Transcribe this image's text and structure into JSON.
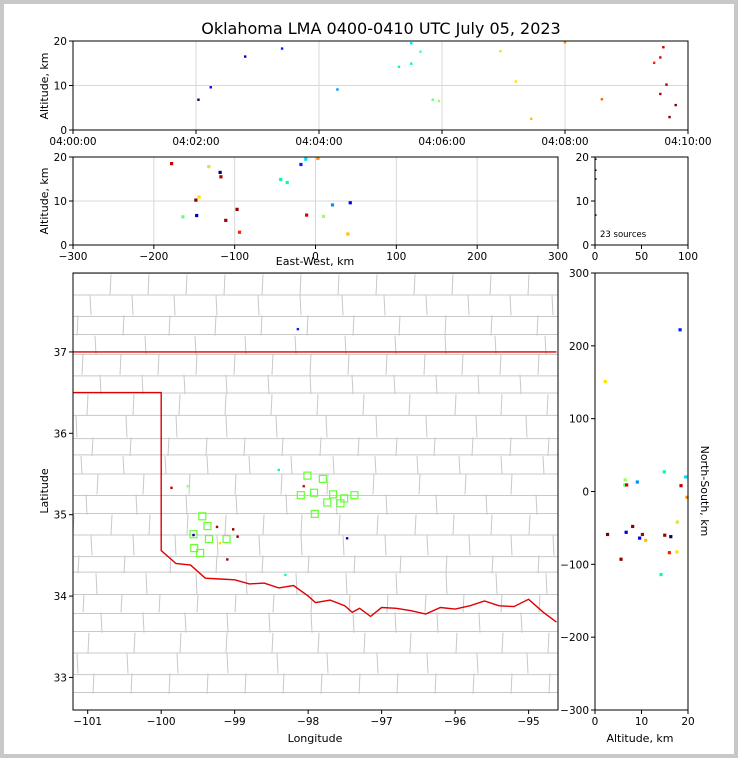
{
  "title": "Oklahoma LMA 0400-0410 UTC July 05, 2023",
  "colors": {
    "state_line": "#e00000",
    "county_line": "#c8c8c8",
    "grid": "#d8d8d8",
    "box": "#66ff33",
    "frame": "#c8c8c8"
  },
  "chart_data": [
    {
      "id": "time_altitude",
      "type": "scatter",
      "ylabel": "Altitude, km",
      "xlabel": "",
      "ylim": [
        0,
        20
      ],
      "y_ticks": [
        "0",
        "10",
        "20"
      ],
      "x_ticks": [
        "04:00:00",
        "04:02:00",
        "04:04:00",
        "04:06:00",
        "04:08:00",
        "04:10:00"
      ],
      "x_tick_minutes": [
        0,
        2,
        4,
        6,
        8,
        10
      ],
      "xlim_minutes": [
        0,
        10
      ],
      "grid": true,
      "points": [
        {
          "x": 2.04,
          "y": 6.8,
          "c": "#000080"
        },
        {
          "x": 2.24,
          "y": 9.6,
          "c": "#0000ff"
        },
        {
          "x": 2.8,
          "y": 16.5,
          "c": "#0000c0"
        },
        {
          "x": 3.4,
          "y": 18.3,
          "c": "#0020ff"
        },
        {
          "x": 4.3,
          "y": 9.1,
          "c": "#0090ff"
        },
        {
          "x": 5.3,
          "y": 14.2,
          "c": "#00ffc0"
        },
        {
          "x": 5.5,
          "y": 14.9,
          "c": "#00ffa0"
        },
        {
          "x": 5.5,
          "y": 19.5,
          "c": "#00e0ff"
        },
        {
          "x": 5.65,
          "y": 17.6,
          "c": "#40ffb0"
        },
        {
          "x": 5.85,
          "y": 6.8,
          "c": "#60ff80"
        },
        {
          "x": 5.95,
          "y": 6.5,
          "c": "#a0ff60"
        },
        {
          "x": 6.95,
          "y": 17.7,
          "c": "#e0e040"
        },
        {
          "x": 7.2,
          "y": 10.9,
          "c": "#ffe000"
        },
        {
          "x": 7.45,
          "y": 2.5,
          "c": "#ffc000"
        },
        {
          "x": 8.0,
          "y": 19.7,
          "c": "#ff9000"
        },
        {
          "x": 8.6,
          "y": 6.9,
          "c": "#ff6000"
        },
        {
          "x": 9.45,
          "y": 15.1,
          "c": "#ff2000"
        },
        {
          "x": 9.55,
          "y": 16.3,
          "c": "#e00000"
        },
        {
          "x": 9.6,
          "y": 18.6,
          "c": "#c00000"
        },
        {
          "x": 9.55,
          "y": 8.1,
          "c": "#b00000"
        },
        {
          "x": 9.65,
          "y": 10.2,
          "c": "#a00000"
        },
        {
          "x": 9.7,
          "y": 2.9,
          "c": "#900000"
        },
        {
          "x": 9.8,
          "y": 5.6,
          "c": "#800000"
        }
      ]
    },
    {
      "id": "ew_altitude",
      "type": "scatter",
      "xlabel": "East-West, km",
      "ylabel": "Altitude, km",
      "xlim": [
        -300,
        300
      ],
      "ylim": [
        0,
        20
      ],
      "x_ticks": [
        "−300",
        "−200",
        "−100",
        "0",
        "100",
        "200",
        "300"
      ],
      "x_tick_values": [
        -300,
        -200,
        -100,
        0,
        100,
        200,
        300
      ],
      "y_ticks": [
        "0",
        "10",
        "20"
      ],
      "grid": true,
      "points": [
        {
          "x": -178,
          "y": 18.5,
          "c": "#c00000"
        },
        {
          "x": -132,
          "y": 17.8,
          "c": "#e0e040"
        },
        {
          "x": -118,
          "y": 16.5,
          "c": "#000080"
        },
        {
          "x": -117,
          "y": 15.5,
          "c": "#b00000"
        },
        {
          "x": -148,
          "y": 10.2,
          "c": "#800000"
        },
        {
          "x": -144,
          "y": 10.9,
          "c": "#ffe000"
        },
        {
          "x": -97,
          "y": 8.1,
          "c": "#900000"
        },
        {
          "x": -164,
          "y": 6.4,
          "c": "#60ff80"
        },
        {
          "x": -147,
          "y": 6.7,
          "c": "#0000c0"
        },
        {
          "x": -111,
          "y": 5.6,
          "c": "#a00000"
        },
        {
          "x": -94,
          "y": 2.9,
          "c": "#ff2000"
        },
        {
          "x": -43,
          "y": 14.9,
          "c": "#00ffa0"
        },
        {
          "x": -35,
          "y": 14.2,
          "c": "#00ffc0"
        },
        {
          "x": -18,
          "y": 18.3,
          "c": "#0020ff"
        },
        {
          "x": -12,
          "y": 19.5,
          "c": "#00e0ff"
        },
        {
          "x": 3,
          "y": 19.7,
          "c": "#ff9000"
        },
        {
          "x": -11,
          "y": 6.8,
          "c": "#e00000"
        },
        {
          "x": 10,
          "y": 6.5,
          "c": "#a0ff60"
        },
        {
          "x": 21,
          "y": 9.1,
          "c": "#0090ff"
        },
        {
          "x": 43,
          "y": 9.6,
          "c": "#0000ff"
        },
        {
          "x": 40,
          "y": 2.5,
          "c": "#ffc000"
        }
      ]
    },
    {
      "id": "altitude_histogram",
      "type": "scatter",
      "xlim": [
        0,
        100
      ],
      "ylim": [
        0,
        20
      ],
      "x_ticks": [
        "0",
        "50",
        "100"
      ],
      "x_tick_values": [
        0,
        50,
        100
      ],
      "y_ticks": [
        "0",
        "10",
        "20"
      ],
      "annotation": "23 sources",
      "points": [
        {
          "x": 1,
          "y": 19.5,
          "c": "#000000"
        },
        {
          "x": 1,
          "y": 17,
          "c": "#000000"
        },
        {
          "x": 1,
          "y": 15,
          "c": "#000000"
        },
        {
          "x": 1,
          "y": 6.8,
          "c": "#000000"
        }
      ]
    },
    {
      "id": "plan_view",
      "type": "scatter",
      "xlabel": "Longitude",
      "ylabel": "Latitude",
      "xlim": [
        -101.2,
        -94.6
      ],
      "ylim": [
        32.6,
        37.97
      ],
      "x_ticks": [
        "−101",
        "−100",
        "−99",
        "−98",
        "−97",
        "−96",
        "−95"
      ],
      "x_tick_values": [
        -101,
        -100,
        -99,
        -98,
        -97,
        -96,
        -95
      ],
      "y_ticks": [
        "33",
        "34",
        "35",
        "36",
        "37"
      ],
      "y_tick_values": [
        33,
        34,
        35,
        36,
        37
      ],
      "points": [
        {
          "x": -98.14,
          "y": 37.28,
          "c": "#0020ff"
        },
        {
          "x": -99.86,
          "y": 35.33,
          "c": "#c00000"
        },
        {
          "x": -99.64,
          "y": 35.35,
          "c": "#a0ff60"
        },
        {
          "x": -99.56,
          "y": 34.75,
          "c": "#000080"
        },
        {
          "x": -99.24,
          "y": 34.85,
          "c": "#b00000"
        },
        {
          "x": -99.2,
          "y": 34.65,
          "c": "#ffe000"
        },
        {
          "x": -99.1,
          "y": 34.45,
          "c": "#a00000"
        },
        {
          "x": -99.02,
          "y": 34.82,
          "c": "#900000"
        },
        {
          "x": -98.96,
          "y": 34.73,
          "c": "#800000"
        },
        {
          "x": -98.4,
          "y": 35.55,
          "c": "#00ffa0"
        },
        {
          "x": -98.31,
          "y": 34.26,
          "c": "#00ffc0"
        },
        {
          "x": -98.06,
          "y": 35.35,
          "c": "#e00000"
        },
        {
          "x": -97.47,
          "y": 34.71,
          "c": "#0000c0"
        }
      ],
      "boxes": [
        {
          "x": -98.01,
          "y": 35.48
        },
        {
          "x": -97.8,
          "y": 35.44
        },
        {
          "x": -98.1,
          "y": 35.24
        },
        {
          "x": -97.92,
          "y": 35.27
        },
        {
          "x": -97.66,
          "y": 35.25
        },
        {
          "x": -97.74,
          "y": 35.15
        },
        {
          "x": -97.56,
          "y": 35.14
        },
        {
          "x": -97.51,
          "y": 35.2
        },
        {
          "x": -97.37,
          "y": 35.24
        },
        {
          "x": -97.91,
          "y": 35.01
        },
        {
          "x": -99.44,
          "y": 34.98
        },
        {
          "x": -99.37,
          "y": 34.86
        },
        {
          "x": -99.56,
          "y": 34.76
        },
        {
          "x": -99.35,
          "y": 34.7
        },
        {
          "x": -99.11,
          "y": 34.7
        },
        {
          "x": -99.55,
          "y": 34.59
        },
        {
          "x": -99.47,
          "y": 34.53
        }
      ],
      "state_line_1": [
        [
          -101.2,
          37
        ],
        [
          -94.62,
          37.0
        ]
      ],
      "state_line_2": [
        [
          -101.2,
          36.5
        ],
        [
          -100,
          36.5
        ],
        [
          -100,
          34.56
        ],
        [
          -99.8,
          34.4
        ],
        [
          -99.6,
          34.38
        ],
        [
          -99.4,
          34.22
        ],
        [
          -99.2,
          34.21
        ],
        [
          -99.0,
          34.2
        ],
        [
          -98.8,
          34.15
        ],
        [
          -98.6,
          34.16
        ],
        [
          -98.4,
          34.1
        ],
        [
          -98.2,
          34.13
        ],
        [
          -98.0,
          34.0
        ],
        [
          -97.9,
          33.92
        ],
        [
          -97.7,
          33.95
        ],
        [
          -97.5,
          33.88
        ],
        [
          -97.4,
          33.8
        ],
        [
          -97.3,
          33.85
        ],
        [
          -97.15,
          33.75
        ],
        [
          -97.0,
          33.86
        ],
        [
          -96.8,
          33.85
        ],
        [
          -96.6,
          33.82
        ],
        [
          -96.4,
          33.78
        ],
        [
          -96.2,
          33.86
        ],
        [
          -96.0,
          33.84
        ],
        [
          -95.8,
          33.88
        ],
        [
          -95.6,
          33.94
        ],
        [
          -95.4,
          33.88
        ],
        [
          -95.2,
          33.87
        ],
        [
          -95.0,
          33.96
        ],
        [
          -94.8,
          33.8
        ],
        [
          -94.62,
          33.68
        ]
      ]
    },
    {
      "id": "altitude_ns",
      "type": "scatter",
      "xlabel": "Altitude, km",
      "ylabel": "North-South, km",
      "xlim": [
        0,
        20
      ],
      "ylim": [
        -300,
        300
      ],
      "x_ticks": [
        "0",
        "10",
        "20"
      ],
      "x_tick_values": [
        0,
        10,
        20
      ],
      "y_ticks": [
        "−300",
        "−200",
        "−100",
        "0",
        "100",
        "200",
        "300"
      ],
      "y_tick_values": [
        -300,
        -200,
        -100,
        0,
        100,
        200,
        300
      ],
      "points": [
        {
          "x": 18.3,
          "y": 222,
          "c": "#0020ff"
        },
        {
          "x": 2.2,
          "y": 151,
          "c": "#ffe000"
        },
        {
          "x": 14.9,
          "y": 27,
          "c": "#00ffa0"
        },
        {
          "x": 19.5,
          "y": 20,
          "c": "#00e0ff"
        },
        {
          "x": 6.5,
          "y": 16,
          "c": "#a0ff60"
        },
        {
          "x": 9.1,
          "y": 13,
          "c": "#0090ff"
        },
        {
          "x": 6.4,
          "y": 9,
          "c": "#60ff80"
        },
        {
          "x": 6.8,
          "y": 9,
          "c": "#e00000"
        },
        {
          "x": 18.5,
          "y": 8,
          "c": "#c00000"
        },
        {
          "x": 19.8,
          "y": -8,
          "c": "#ff9000"
        },
        {
          "x": 17.7,
          "y": -42,
          "c": "#e0e040"
        },
        {
          "x": 8.1,
          "y": -48,
          "c": "#900000"
        },
        {
          "x": 6.7,
          "y": -56,
          "c": "#0000c0"
        },
        {
          "x": 2.7,
          "y": -59,
          "c": "#800000"
        },
        {
          "x": 10.2,
          "y": -59,
          "c": "#b00000"
        },
        {
          "x": 15.0,
          "y": -60,
          "c": "#a00000"
        },
        {
          "x": 16.3,
          "y": -62,
          "c": "#000080"
        },
        {
          "x": 9.6,
          "y": -64,
          "c": "#0000ff"
        },
        {
          "x": 10.9,
          "y": -67,
          "c": "#ffc000"
        },
        {
          "x": 16.0,
          "y": -84,
          "c": "#ff2000"
        },
        {
          "x": 17.6,
          "y": -83,
          "c": "#ffe000"
        },
        {
          "x": 5.6,
          "y": -93,
          "c": "#900000"
        },
        {
          "x": 14.2,
          "y": -114,
          "c": "#00ffc0"
        }
      ]
    }
  ]
}
